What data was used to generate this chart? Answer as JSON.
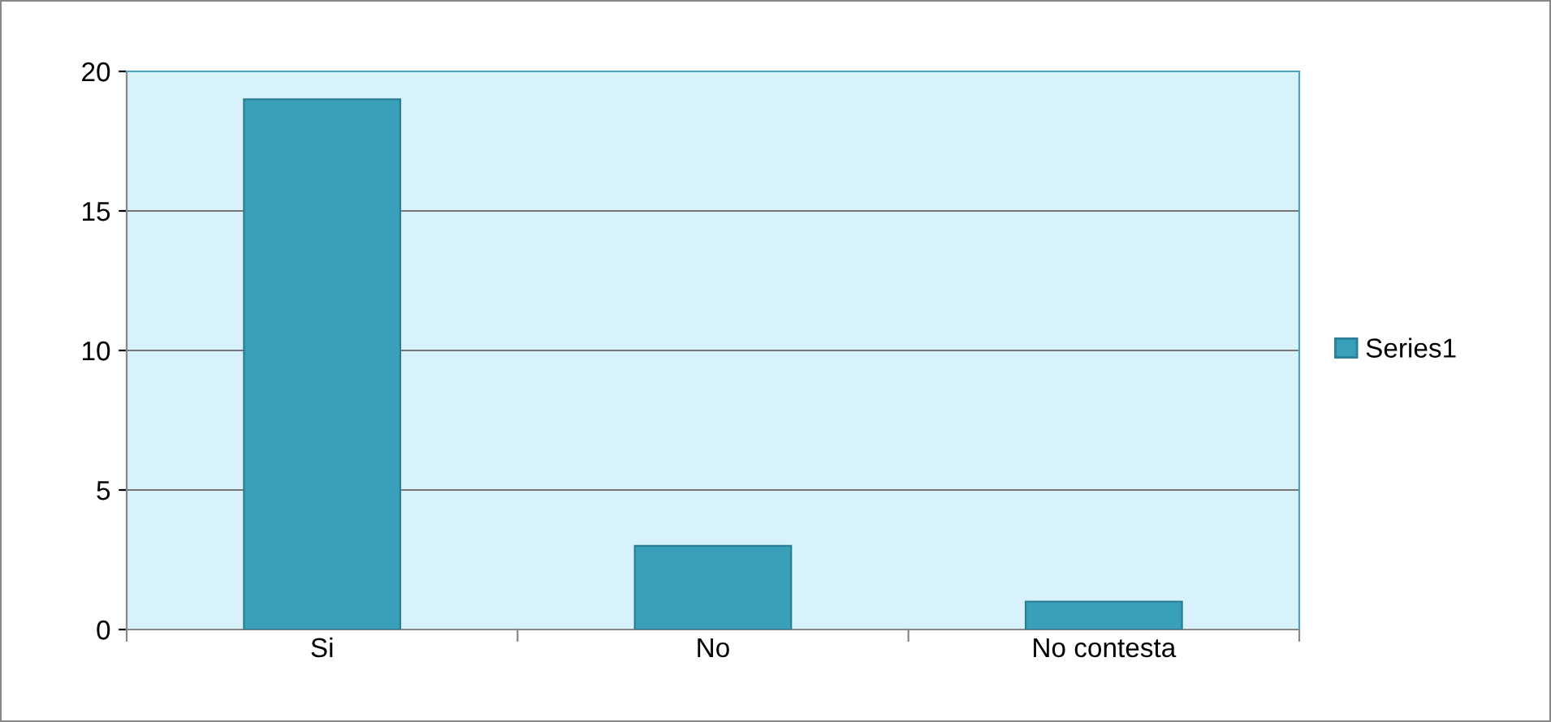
{
  "chart_data": {
    "type": "bar",
    "categories": [
      "Si",
      "No",
      "No contesta"
    ],
    "series": [
      {
        "name": "Series1",
        "color": "#3a9fb8",
        "values": [
          19,
          3,
          1
        ]
      }
    ],
    "ylim": [
      0,
      20
    ],
    "yticks": [
      0,
      5,
      10,
      15,
      20
    ],
    "grid": "y",
    "legend": "right"
  }
}
